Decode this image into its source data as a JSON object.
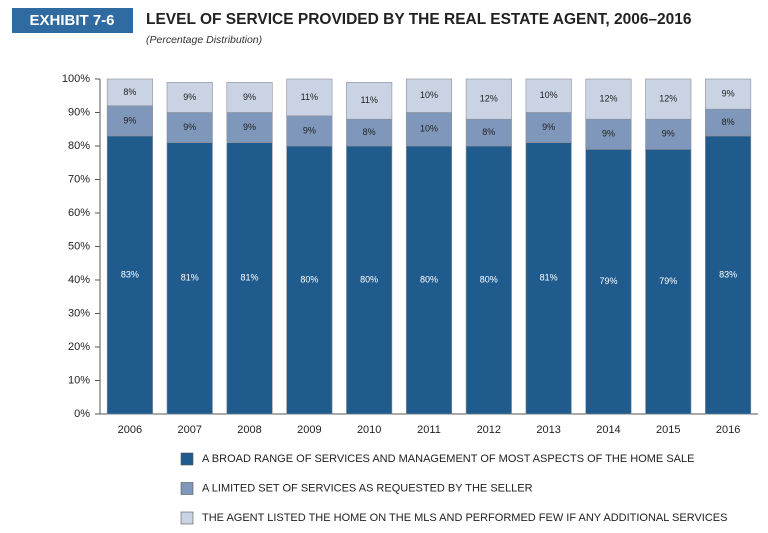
{
  "chart_data": {
    "type": "stacked-bar",
    "badge": "EXHIBIT 7-6",
    "title": "LEVEL OF SERVICE PROVIDED BY THE REAL ESTATE AGENT, 2006–2016",
    "subtitle": "(Percentage Distribution)",
    "categories": [
      "2006",
      "2007",
      "2008",
      "2009",
      "2010",
      "2011",
      "2012",
      "2013",
      "2014",
      "2015",
      "2016"
    ],
    "series": [
      {
        "name": "A BROAD RANGE OF SERVICES AND MANAGEMENT OF MOST ASPECTS OF THE HOME SALE",
        "color": "#1f5b8c",
        "values": [
          83,
          81,
          81,
          80,
          80,
          80,
          80,
          81,
          79,
          79,
          83
        ],
        "value_labels": [
          "83%",
          "81%",
          "81%",
          "80%",
          "80%",
          "80%",
          "80%",
          "81%",
          "79%",
          "79%",
          "83%"
        ]
      },
      {
        "name": "A LIMITED SET OF SERVICES AS REQUESTED BY THE SELLER",
        "color": "#7f97bb",
        "values": [
          9,
          9,
          9,
          9,
          8,
          10,
          8,
          9,
          9,
          9,
          8
        ],
        "value_labels": [
          "9%",
          "9%",
          "9%",
          "9%",
          "8%",
          "10%",
          "8%",
          "9%",
          "9%",
          "9%",
          "8%"
        ]
      },
      {
        "name": "THE AGENT LISTED THE HOME ON THE MLS AND PERFORMED FEW IF ANY ADDITIONAL SERVICES",
        "color": "#c9d3e3",
        "values": [
          8,
          9,
          9,
          11,
          11,
          10,
          12,
          10,
          12,
          12,
          9
        ],
        "value_labels": [
          "8%",
          "9%",
          "9%",
          "11%",
          "11%",
          "10%",
          "12%",
          "10%",
          "12%",
          "12%",
          "9%"
        ]
      }
    ],
    "ylim": [
      0,
      100
    ],
    "yticks": [
      {
        "value": 0,
        "label": "0%"
      },
      {
        "value": 10,
        "label": "10%"
      },
      {
        "value": 20,
        "label": "20%"
      },
      {
        "value": 30,
        "label": "30%"
      },
      {
        "value": 40,
        "label": "40%"
      },
      {
        "value": 50,
        "label": "50%"
      },
      {
        "value": 60,
        "label": "60%"
      },
      {
        "value": 70,
        "label": "70%"
      },
      {
        "value": 80,
        "label": "80%"
      },
      {
        "value": 90,
        "label": "90%"
      },
      {
        "value": 100,
        "label": "100%"
      }
    ]
  }
}
